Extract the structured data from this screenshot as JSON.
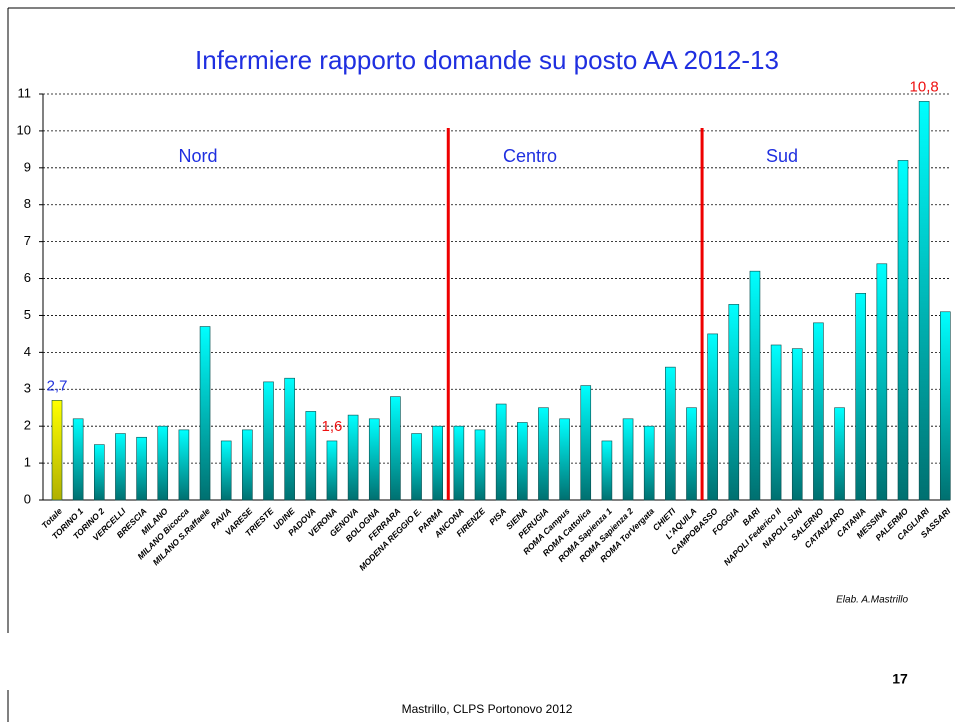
{
  "chart_data": {
    "type": "bar",
    "title": "Infermiere rapporto domande  su posto AA 2012-13",
    "categories": [
      "Totale",
      "TORINO 1",
      "TORINO 2",
      "VERCELLI",
      "BRESCIA",
      "MILANO",
      "MILANO Bicocca",
      "MILANO S.Raffaele",
      "PAVIA",
      "VARESE",
      "TRIESTE",
      "UDINE",
      "PADOVA",
      "VERONA",
      "GENOVA",
      "BOLOGNA",
      "FERRARA",
      "MODENA REGGIO E.",
      "PARMA",
      "ANCONA",
      "FIRENZE",
      "PISA",
      "SIENA",
      "PERUGIA",
      "ROMA Campus",
      "ROMA Cattolica",
      "ROMA Sapienza 1",
      "ROMA Sapienza 2",
      "ROMA TorVergata",
      "CHIETI",
      "L'AQUILA",
      "CAMPOBASSO",
      "FOGGIA",
      "BARI",
      "NAPOLI Federico II",
      "NAPOLI SUN",
      "SALERNO",
      "CATANZARO",
      "CATANIA",
      "MESSINA",
      "PALERMO",
      "CAGLIARI",
      "SASSARI"
    ],
    "values": [
      2.7,
      2.2,
      1.5,
      1.8,
      1.7,
      2.0,
      1.9,
      4.7,
      1.6,
      1.9,
      3.2,
      3.3,
      2.4,
      1.6,
      2.3,
      2.2,
      2.8,
      1.8,
      2.0,
      2.0,
      1.9,
      2.6,
      2.1,
      2.5,
      2.2,
      3.1,
      1.6,
      2.2,
      2.0,
      3.6,
      2.5,
      4.5,
      5.3,
      6.2,
      4.2,
      4.1,
      4.8,
      2.5,
      5.6,
      6.4,
      9.2,
      10.8,
      5.1
    ],
    "value_labels": [
      "2,7",
      null,
      null,
      null,
      null,
      null,
      null,
      null,
      null,
      null,
      null,
      null,
      null,
      "1,6",
      null,
      null,
      null,
      null,
      null,
      null,
      null,
      null,
      null,
      null,
      null,
      null,
      null,
      null,
      null,
      null,
      null,
      null,
      null,
      null,
      null,
      null,
      null,
      null,
      null,
      null,
      null,
      "10,8",
      null
    ],
    "value_label_colors": [
      "#2233dd",
      null,
      null,
      null,
      null,
      null,
      null,
      null,
      null,
      null,
      null,
      null,
      null,
      "#ee1111",
      null,
      null,
      null,
      null,
      null,
      null,
      null,
      null,
      null,
      null,
      null,
      null,
      null,
      null,
      null,
      null,
      null,
      null,
      null,
      null,
      null,
      null,
      null,
      null,
      null,
      null,
      null,
      "#ee1111",
      null
    ],
    "color": "#00ffff",
    "highlight_color": "#ffff00",
    "regions": [
      "Nord",
      "Centro",
      "Sud"
    ],
    "divider_color": "#ee0000",
    "ylim": [
      0,
      11
    ],
    "yticks": [
      0,
      1,
      2,
      3,
      4,
      5,
      6,
      7,
      8,
      9,
      10,
      11
    ],
    "grid": true,
    "source": "Elab. A.Mastrillo",
    "page_number": "17",
    "footer": "Mastrillo, CLPS Portonovo 2012"
  }
}
